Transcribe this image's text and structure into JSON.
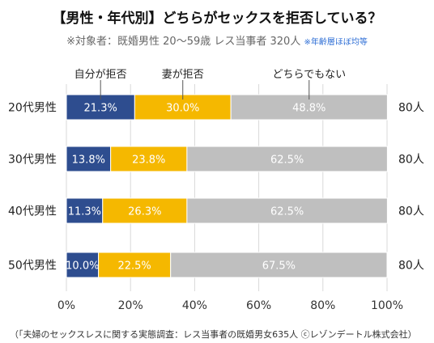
{
  "title": "【男性・年代別】どちらがセックスを拒否している？",
  "subtitle": "※対象者：既婚男性 20〜59歳 レス当事者 320人",
  "subtitle_note": "※年齢層ほぼ均等",
  "footer": "（「夫婦のセックスレスに関する実態調査：レス当事者の既婚男女635人 ⓒレゾンデートル株式会社）",
  "chart_data": {
    "type": "bar",
    "orientation": "horizontal",
    "stacked": true,
    "categories": [
      "20代男性",
      "30代男性",
      "40代男性",
      "50代男性"
    ],
    "series": [
      {
        "name": "自分が拒否",
        "values": [
          21.3,
          13.8,
          11.3,
          10.0
        ],
        "labels": [
          "21.3%",
          "13.8%",
          "11.3%",
          "10.0%"
        ],
        "color": "#2e4d8f",
        "label_color": "#ffffff"
      },
      {
        "name": "妻が拒否",
        "values": [
          30.0,
          23.8,
          26.3,
          22.5
        ],
        "labels": [
          "30.0%",
          "23.8%",
          "26.3%",
          "22.5%"
        ],
        "color": "#f5b800",
        "label_color": "#ffffff"
      },
      {
        "name": "どちらでもない",
        "values": [
          48.8,
          62.5,
          62.5,
          67.5
        ],
        "labels": [
          "48.8%",
          "62.5%",
          "62.5%",
          "67.5%"
        ],
        "color": "#bfbfbf",
        "label_color": "#ffffff"
      }
    ],
    "counts": [
      "80人",
      "80人",
      "80人",
      "80人"
    ],
    "xlim": [
      0,
      100
    ],
    "x_ticks": [
      "0%",
      "20%",
      "40%",
      "60%",
      "80%",
      "100%"
    ],
    "grid": true,
    "legend": "callouts above first bar"
  }
}
